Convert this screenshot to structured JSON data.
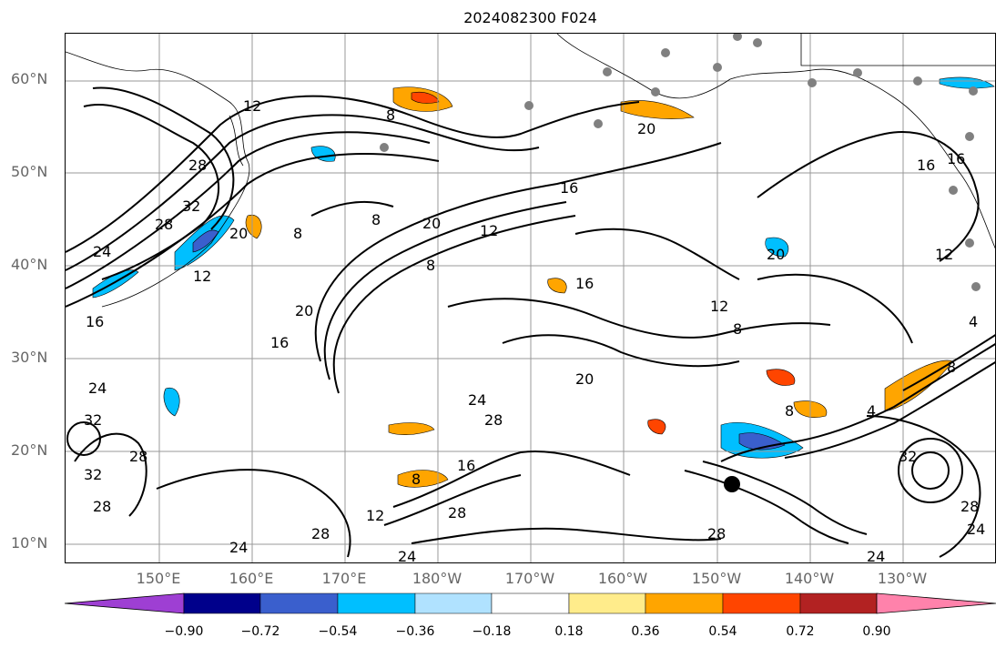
{
  "title": "2024082300 F024",
  "lat_ticks": [
    "60°N",
    "50°N",
    "40°N",
    "30°N",
    "20°N",
    "10°N"
  ],
  "lon_ticks": [
    "150°E",
    "160°E",
    "170°E",
    "180°W",
    "170°W",
    "160°W",
    "150°W",
    "140°W",
    "130°W"
  ],
  "contour_labels": [
    "12",
    "8",
    "20",
    "16",
    "20",
    "8",
    "20",
    "12",
    "8",
    "16",
    "28",
    "32",
    "28",
    "24",
    "12",
    "8",
    "16",
    "20",
    "16",
    "12",
    "8",
    "16",
    "20",
    "24",
    "28",
    "8",
    "20",
    "8",
    "4",
    "8",
    "32",
    "24",
    "28",
    "32",
    "24",
    "28",
    "16",
    "12",
    "28",
    "24",
    "28",
    "24",
    "28",
    "32",
    "28",
    "24",
    "16",
    "12",
    "4"
  ],
  "colorbar": {
    "ticks": [
      "−0.90",
      "−0.72",
      "−0.54",
      "−0.36",
      "−0.18",
      "0.18",
      "0.36",
      "0.54",
      "0.72",
      "0.90"
    ],
    "colors": [
      "#9e3fd3",
      "#00008b",
      "#3a5fcd",
      "#00bfff",
      "#b0e2ff",
      "#ffffff",
      "#ffec8b",
      "#ffa500",
      "#ff4500",
      "#b22222",
      "#ff82ab"
    ]
  },
  "colors": {
    "text": "#000000",
    "axis_label": "#666666",
    "grid": "#999999",
    "station": "#808080"
  }
}
